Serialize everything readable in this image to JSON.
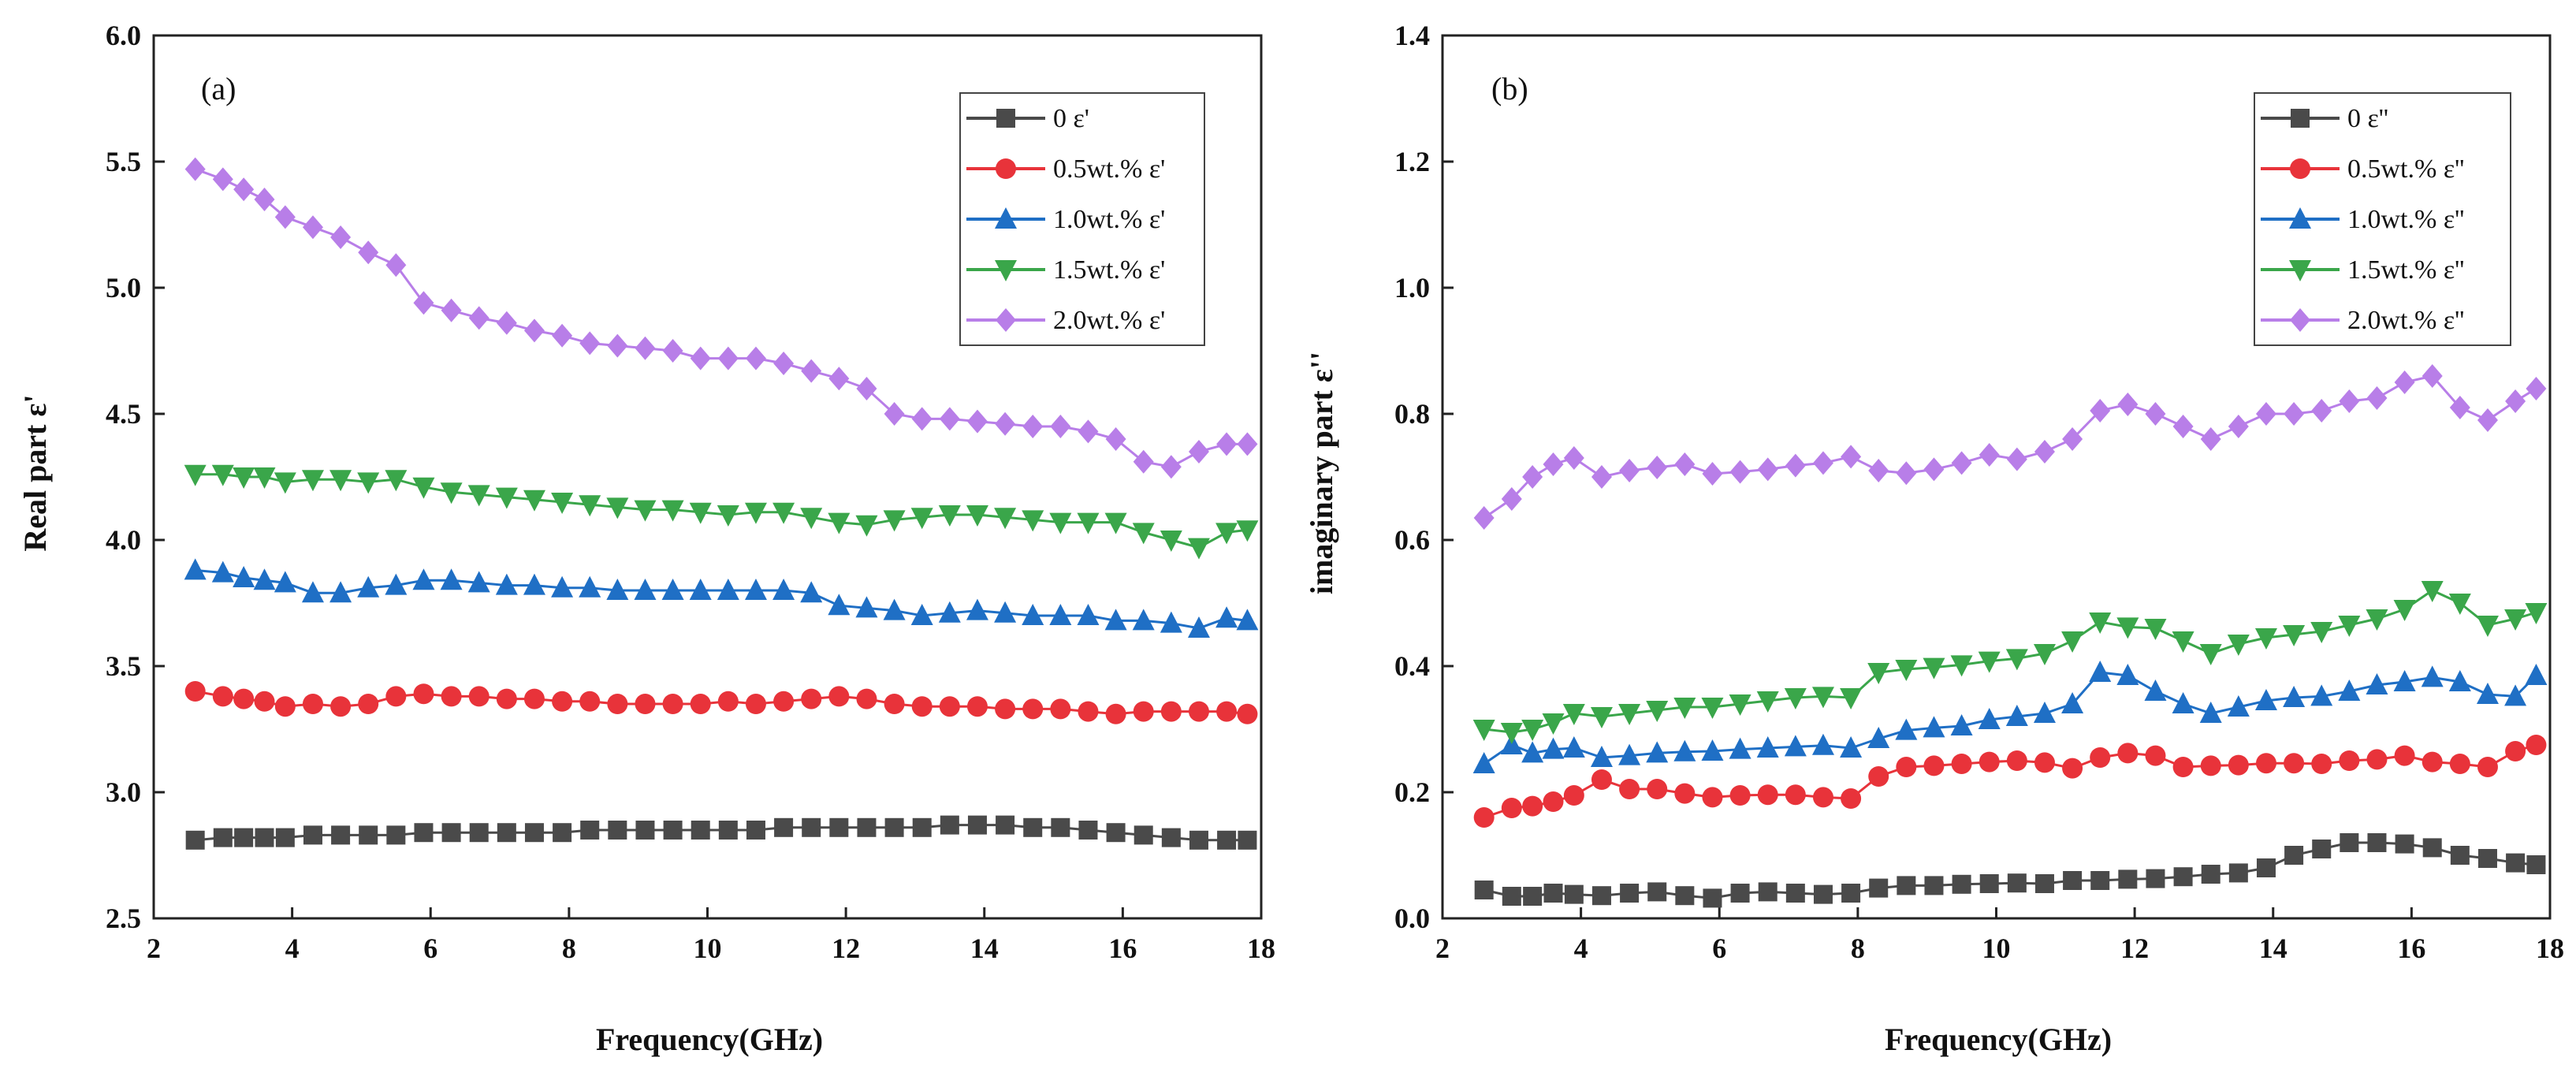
{
  "chart_data": [
    {
      "type": "line",
      "panel_label": "(a)",
      "xlabel": "Frequency(GHz)",
      "ylabel": "Real part ε'",
      "xlim": [
        2,
        18
      ],
      "ylim": [
        2.5,
        6.0
      ],
      "xticks": [
        "2",
        "4",
        "6",
        "8",
        "10",
        "12",
        "14",
        "16",
        "18"
      ],
      "yticks": [
        "2.5",
        "3.0",
        "3.5",
        "4.0",
        "4.5",
        "5.0",
        "5.5",
        "6.0"
      ],
      "legend_position": "top-right",
      "x": [
        2.6,
        3.0,
        3.3,
        3.6,
        3.9,
        4.3,
        4.7,
        5.1,
        5.5,
        5.9,
        6.3,
        6.7,
        7.1,
        7.5,
        7.9,
        8.3,
        8.7,
        9.1,
        9.5,
        9.9,
        10.3,
        10.7,
        11.1,
        11.5,
        11.9,
        12.3,
        12.7,
        13.1,
        13.5,
        13.9,
        14.3,
        14.7,
        15.1,
        15.5,
        15.9,
        16.3,
        16.7,
        17.1,
        17.5,
        17.8
      ],
      "series": [
        {
          "name": "0 ε'",
          "color": "#4a4a4a",
          "marker": "square",
          "values": [
            2.81,
            2.82,
            2.82,
            2.82,
            2.82,
            2.83,
            2.83,
            2.83,
            2.83,
            2.84,
            2.84,
            2.84,
            2.84,
            2.84,
            2.84,
            2.85,
            2.85,
            2.85,
            2.85,
            2.85,
            2.85,
            2.85,
            2.86,
            2.86,
            2.86,
            2.86,
            2.86,
            2.86,
            2.87,
            2.87,
            2.87,
            2.86,
            2.86,
            2.85,
            2.84,
            2.83,
            2.82,
            2.81,
            2.81,
            2.81
          ]
        },
        {
          "name": "0.5wt.% ε'",
          "color": "#e8333a",
          "marker": "circle",
          "values": [
            3.4,
            3.38,
            3.37,
            3.36,
            3.34,
            3.35,
            3.34,
            3.35,
            3.38,
            3.39,
            3.38,
            3.38,
            3.37,
            3.37,
            3.36,
            3.36,
            3.35,
            3.35,
            3.35,
            3.35,
            3.36,
            3.35,
            3.36,
            3.37,
            3.38,
            3.37,
            3.35,
            3.34,
            3.34,
            3.34,
            3.33,
            3.33,
            3.33,
            3.32,
            3.31,
            3.32,
            3.32,
            3.32,
            3.32,
            3.31
          ]
        },
        {
          "name": "1.0wt.% ε'",
          "color": "#1f6fc5",
          "marker": "triangle-up",
          "values": [
            3.88,
            3.87,
            3.85,
            3.84,
            3.83,
            3.79,
            3.79,
            3.81,
            3.82,
            3.84,
            3.84,
            3.83,
            3.82,
            3.82,
            3.81,
            3.81,
            3.8,
            3.8,
            3.8,
            3.8,
            3.8,
            3.8,
            3.8,
            3.79,
            3.74,
            3.73,
            3.72,
            3.7,
            3.71,
            3.72,
            3.71,
            3.7,
            3.7,
            3.7,
            3.68,
            3.68,
            3.67,
            3.65,
            3.69,
            3.68
          ]
        },
        {
          "name": "1.5wt.% ε'",
          "color": "#3aa64a",
          "marker": "triangle-down",
          "values": [
            4.26,
            4.26,
            4.25,
            4.25,
            4.23,
            4.24,
            4.24,
            4.23,
            4.24,
            4.21,
            4.19,
            4.18,
            4.17,
            4.16,
            4.15,
            4.14,
            4.13,
            4.12,
            4.12,
            4.11,
            4.1,
            4.11,
            4.11,
            4.09,
            4.07,
            4.06,
            4.08,
            4.09,
            4.1,
            4.1,
            4.09,
            4.08,
            4.07,
            4.07,
            4.07,
            4.03,
            4.0,
            3.97,
            4.03,
            4.04
          ]
        },
        {
          "name": "2.0wt.% ε'",
          "color": "#b87ee8",
          "marker": "diamond",
          "values": [
            5.47,
            5.43,
            5.39,
            5.35,
            5.28,
            5.24,
            5.2,
            5.14,
            5.09,
            4.94,
            4.91,
            4.88,
            4.86,
            4.83,
            4.81,
            4.78,
            4.77,
            4.76,
            4.75,
            4.72,
            4.72,
            4.72,
            4.7,
            4.67,
            4.64,
            4.6,
            4.5,
            4.48,
            4.48,
            4.47,
            4.46,
            4.45,
            4.45,
            4.43,
            4.4,
            4.31,
            4.29,
            4.35,
            4.38,
            4.38
          ]
        }
      ]
    },
    {
      "type": "line",
      "panel_label": "(b)",
      "xlabel": "Frequency(GHz)",
      "ylabel": "imaginary part ε''",
      "xlim": [
        2,
        18
      ],
      "ylim": [
        0.0,
        1.4
      ],
      "xticks": [
        "2",
        "4",
        "6",
        "8",
        "10",
        "12",
        "14",
        "16",
        "18"
      ],
      "yticks": [
        "0.0",
        "0.2",
        "0.4",
        "0.6",
        "0.8",
        "1.0",
        "1.2",
        "1.4"
      ],
      "legend_position": "top-right",
      "x": [
        2.6,
        3.0,
        3.3,
        3.6,
        3.9,
        4.3,
        4.7,
        5.1,
        5.5,
        5.9,
        6.3,
        6.7,
        7.1,
        7.5,
        7.9,
        8.3,
        8.7,
        9.1,
        9.5,
        9.9,
        10.3,
        10.7,
        11.1,
        11.5,
        11.9,
        12.3,
        12.7,
        13.1,
        13.5,
        13.9,
        14.3,
        14.7,
        15.1,
        15.5,
        15.9,
        16.3,
        16.7,
        17.1,
        17.5,
        17.8
      ],
      "series": [
        {
          "name": "0 ε''",
          "color": "#4a4a4a",
          "marker": "square",
          "values": [
            0.045,
            0.035,
            0.035,
            0.04,
            0.038,
            0.036,
            0.04,
            0.042,
            0.036,
            0.032,
            0.04,
            0.042,
            0.04,
            0.038,
            0.04,
            0.048,
            0.052,
            0.052,
            0.054,
            0.055,
            0.056,
            0.055,
            0.06,
            0.06,
            0.062,
            0.063,
            0.066,
            0.07,
            0.072,
            0.08,
            0.1,
            0.11,
            0.12,
            0.12,
            0.118,
            0.112,
            0.1,
            0.095,
            0.088,
            0.085
          ]
        },
        {
          "name": "0.5wt.% ε''",
          "color": "#e8333a",
          "marker": "circle",
          "values": [
            0.16,
            0.175,
            0.178,
            0.185,
            0.195,
            0.22,
            0.205,
            0.205,
            0.198,
            0.192,
            0.195,
            0.196,
            0.196,
            0.192,
            0.19,
            0.225,
            0.24,
            0.242,
            0.245,
            0.248,
            0.25,
            0.247,
            0.238,
            0.255,
            0.262,
            0.258,
            0.24,
            0.242,
            0.243,
            0.246,
            0.246,
            0.245,
            0.25,
            0.252,
            0.258,
            0.248,
            0.245,
            0.24,
            0.265,
            0.275
          ]
        },
        {
          "name": "1.0wt.% ε''",
          "color": "#1f6fc5",
          "marker": "triangle-up",
          "values": [
            0.245,
            0.275,
            0.262,
            0.268,
            0.27,
            0.255,
            0.258,
            0.262,
            0.264,
            0.265,
            0.268,
            0.27,
            0.272,
            0.274,
            0.27,
            0.285,
            0.298,
            0.302,
            0.305,
            0.315,
            0.32,
            0.325,
            0.34,
            0.39,
            0.385,
            0.36,
            0.34,
            0.325,
            0.335,
            0.345,
            0.35,
            0.352,
            0.36,
            0.37,
            0.375,
            0.382,
            0.375,
            0.355,
            0.352,
            0.385
          ]
        },
        {
          "name": "1.5wt.% ε''",
          "color": "#3aa64a",
          "marker": "triangle-down",
          "values": [
            0.3,
            0.295,
            0.3,
            0.31,
            0.325,
            0.32,
            0.325,
            0.33,
            0.335,
            0.335,
            0.34,
            0.345,
            0.35,
            0.352,
            0.35,
            0.39,
            0.395,
            0.398,
            0.402,
            0.408,
            0.412,
            0.42,
            0.44,
            0.47,
            0.462,
            0.46,
            0.44,
            0.42,
            0.435,
            0.445,
            0.45,
            0.455,
            0.465,
            0.475,
            0.49,
            0.52,
            0.5,
            0.465,
            0.475,
            0.485
          ]
        },
        {
          "name": "2.0wt.% ε''",
          "color": "#b87ee8",
          "marker": "diamond",
          "values": [
            0.635,
            0.665,
            0.7,
            0.72,
            0.73,
            0.7,
            0.71,
            0.715,
            0.72,
            0.705,
            0.708,
            0.712,
            0.718,
            0.722,
            0.732,
            0.71,
            0.706,
            0.712,
            0.722,
            0.735,
            0.728,
            0.74,
            0.76,
            0.805,
            0.815,
            0.8,
            0.78,
            0.76,
            0.78,
            0.8,
            0.8,
            0.805,
            0.82,
            0.825,
            0.85,
            0.86,
            0.81,
            0.79,
            0.82,
            0.84
          ]
        }
      ]
    }
  ]
}
